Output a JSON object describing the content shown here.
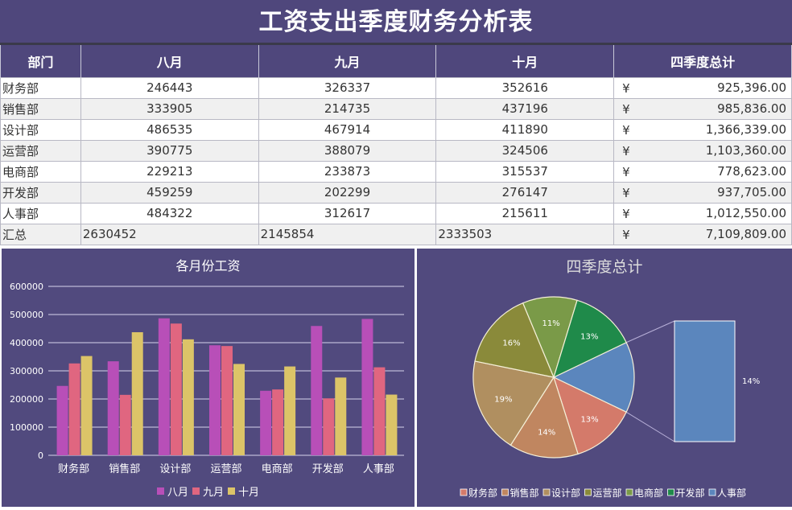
{
  "title": "工资支出季度财务分析表",
  "table": {
    "headers": [
      "部门",
      "八月",
      "九月",
      "十月",
      "四季度总计"
    ],
    "rows": [
      {
        "dept": "财务部",
        "aug": "246443",
        "sep": "326337",
        "oct": "352616",
        "currency": "¥",
        "total": "925,396.00"
      },
      {
        "dept": "销售部",
        "aug": "333905",
        "sep": "214735",
        "oct": "437196",
        "currency": "¥",
        "total": "985,836.00"
      },
      {
        "dept": "设计部",
        "aug": "486535",
        "sep": "467914",
        "oct": "411890",
        "currency": "¥",
        "total": "1,366,339.00"
      },
      {
        "dept": "运营部",
        "aug": "390775",
        "sep": "388079",
        "oct": "324506",
        "currency": "¥",
        "total": "1,103,360.00"
      },
      {
        "dept": "电商部",
        "aug": "229213",
        "sep": "233873",
        "oct": "315537",
        "currency": "¥",
        "total": "778,623.00"
      },
      {
        "dept": "开发部",
        "aug": "459259",
        "sep": "202299",
        "oct": "276147",
        "currency": "¥",
        "total": "937,705.00"
      },
      {
        "dept": "人事部",
        "aug": "484322",
        "sep": "312617",
        "oct": "215611",
        "currency": "¥",
        "total": "1,012,550.00"
      }
    ],
    "summary": {
      "label": "汇总",
      "aug": "2630452",
      "sep": "2145854",
      "oct": "2333503",
      "currency": "¥",
      "total": "7,109,809.00"
    }
  },
  "colors": {
    "header_bg": "#4f477c",
    "aug": "#b84fb8",
    "sep": "#e06680",
    "oct": "#dcc468"
  },
  "chart_data": [
    {
      "type": "bar",
      "title": "各月份工资",
      "categories": [
        "财务部",
        "销售部",
        "设计部",
        "运营部",
        "电商部",
        "开发部",
        "人事部"
      ],
      "series": [
        {
          "name": "八月",
          "color": "#b84fb8",
          "values": [
            246443,
            333905,
            486535,
            390775,
            229213,
            459259,
            484322
          ]
        },
        {
          "name": "九月",
          "color": "#e06680",
          "values": [
            326337,
            214735,
            467914,
            388079,
            233873,
            202299,
            312617
          ]
        },
        {
          "name": "十月",
          "color": "#dcc468",
          "values": [
            352616,
            437196,
            411890,
            324506,
            315537,
            276147,
            215611
          ]
        }
      ],
      "yticks": [
        "0",
        "100000",
        "200000",
        "300000",
        "400000",
        "500000",
        "600000"
      ],
      "ylim": [
        0,
        600000
      ],
      "grid": true,
      "legend_position": "bottom",
      "xlabel": "",
      "ylabel": ""
    },
    {
      "type": "pie",
      "subtype": "bar-of-pie",
      "title": "四季度总计",
      "categories": [
        "财务部",
        "销售部",
        "设计部",
        "运营部",
        "电商部",
        "开发部",
        "人事部"
      ],
      "values": [
        925396,
        985836,
        1366339,
        1103360,
        778623,
        937705,
        1012550
      ],
      "labels": [
        "13%",
        "14%",
        "19%",
        "16%",
        "11%",
        "13%",
        "14%"
      ],
      "colors": [
        "#d47a6a",
        "#c08660",
        "#b08f60",
        "#8a8a3a",
        "#7a9a48",
        "#1f8a4a",
        "#5b86bd"
      ],
      "secondary_bar": {
        "category": "人事部",
        "label": "14%"
      },
      "legend_position": "bottom"
    }
  ]
}
